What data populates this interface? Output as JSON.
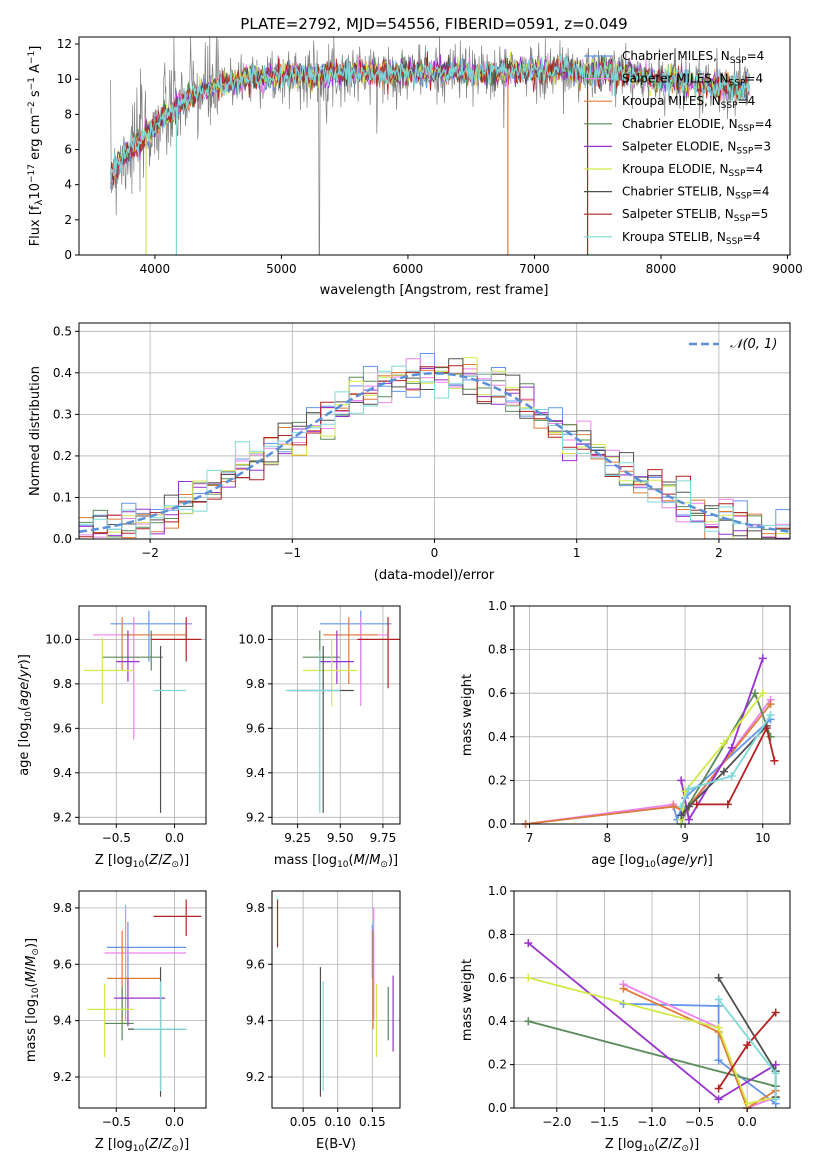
{
  "title": "PLATE=2792, MJD=54556, FIBERID=0591, z=0.049",
  "colors": {
    "chabrier_miles": "#6495ED",
    "salpeter_miles": "#EE82EE",
    "kroupa_miles": "#E07B39",
    "chabrier_elodie": "#5A8A5A",
    "salpeter_elodie": "#9932CC",
    "kroupa_elodie": "#D4E84A",
    "chabrier_stelib": "#505050",
    "salpeter_stelib": "#B22222",
    "kroupa_stelib": "#7FD8D8",
    "gaussian": "#5B8FD8",
    "grid": "#b0b0b0"
  },
  "chart_data": [
    {
      "id": "spectrum",
      "type": "line",
      "xlabel": "wavelength [Angstrom, rest frame]",
      "ylabel": "Flux [f_λ 10^-17 erg cm^-2 s^-1 A^-1]",
      "xlim": [
        3400,
        9020
      ],
      "ylim": [
        0,
        12.4
      ],
      "xticks": [
        "4000",
        "5000",
        "6000",
        "7000",
        "8000",
        "9000"
      ],
      "yticks": [
        "0",
        "2",
        "4",
        "6",
        "8",
        "10",
        "12"
      ],
      "grid": false,
      "legend_position": "right",
      "legend": [
        {
          "model": "Chabrier MILES",
          "nssp": "=4"
        },
        {
          "model": "Salpeter MILES",
          "nssp": "=4"
        },
        {
          "model": "Kroupa MILES",
          "nssp": "=4"
        },
        {
          "model": "Chabrier ELODIE",
          "nssp": "=4"
        },
        {
          "model": "Salpeter ELODIE",
          "nssp": "=3"
        },
        {
          "model": "Kroupa ELODIE",
          "nssp": "=4"
        },
        {
          "model": "Chabrier STELIB",
          "nssp": "=4"
        },
        {
          "model": "Salpeter STELIB",
          "nssp": "=5"
        },
        {
          "model": "Kroupa STELIB",
          "nssp": "=4"
        }
      ],
      "data_continuum": {
        "x": [
          3650,
          3700,
          3800,
          3900,
          4000,
          4100,
          4200,
          4300,
          4400,
          4500,
          4600,
          4700,
          4800,
          5000,
          5200,
          5400,
          5600,
          5800,
          6000,
          6200,
          6400,
          6600,
          6800,
          7000,
          7200,
          7400,
          7600,
          7800,
          8000,
          8200,
          8400,
          8600,
          8700
        ],
        "y": [
          4.5,
          5.2,
          6.0,
          6.6,
          7.3,
          8.0,
          8.6,
          9.1,
          9.4,
          9.6,
          9.8,
          10.0,
          10.1,
          10.2,
          10.2,
          10.3,
          10.4,
          10.3,
          10.4,
          10.4,
          10.4,
          10.3,
          10.5,
          10.4,
          10.6,
          10.3,
          10.4,
          10.2,
          10.0,
          9.9,
          9.6,
          9.5,
          9.6
        ]
      }
    },
    {
      "id": "residuals",
      "type": "histogram",
      "xlabel": "(data-model)/error",
      "ylabel": "Normed distribution",
      "xlim": [
        -2.5,
        2.5
      ],
      "ylim": [
        0,
        0.52
      ],
      "xticks": [
        "−2",
        "−1",
        "0",
        "1",
        "2"
      ],
      "yticks": [
        "0.0",
        "0.1",
        "0.2",
        "0.3",
        "0.4",
        "0.5"
      ],
      "grid": true,
      "legend_position": "top-right",
      "legend_label": "𝒩(0, 1)",
      "bin_width": 0.1
    },
    {
      "id": "age_vs_Z",
      "type": "scatter",
      "xlabel": "Z [log10(Z/Z⊙)]",
      "ylabel": "age  [log10(age/yr)]",
      "xlim": [
        -0.82,
        0.27
      ],
      "ylim": [
        9.17,
        10.15
      ],
      "xticks": [
        "−0.5",
        "0.0"
      ],
      "yticks": [
        "9.2",
        "9.4",
        "9.6",
        "9.8",
        "10.0"
      ],
      "grid": true,
      "points": [
        {
          "m": "chabrier_miles",
          "x": -0.22,
          "xlo": -0.55,
          "xhi": 0.15,
          "y": 10.07,
          "ylo": 9.9,
          "yhi": 10.13
        },
        {
          "m": "salpeter_miles",
          "x": -0.35,
          "xlo": -0.7,
          "xhi": 0.1,
          "y": 10.02,
          "ylo": 9.55,
          "yhi": 10.1
        },
        {
          "m": "kroupa_miles",
          "x": -0.45,
          "xlo": -0.45,
          "xhi": 0.1,
          "y": 10.02,
          "ylo": 9.86,
          "yhi": 10.1
        },
        {
          "m": "chabrier_elodie",
          "x": -0.2,
          "xlo": -0.62,
          "xhi": -0.1,
          "y": 9.92,
          "ylo": 9.86,
          "yhi": 10.04
        },
        {
          "m": "salpeter_elodie",
          "x": -0.4,
          "xlo": -0.5,
          "xhi": -0.3,
          "y": 9.9,
          "ylo": 9.81,
          "yhi": 10.04
        },
        {
          "m": "kroupa_elodie",
          "x": -0.62,
          "xlo": -0.78,
          "xhi": -0.35,
          "y": 9.86,
          "ylo": 9.71,
          "yhi": 10.01
        },
        {
          "m": "chabrier_stelib",
          "x": -0.12,
          "xlo": -0.12,
          "xhi": -0.12,
          "y": 9.77,
          "ylo": 9.22,
          "yhi": 9.97
        },
        {
          "m": "salpeter_stelib",
          "x": 0.1,
          "xlo": -0.2,
          "xhi": 0.23,
          "y": 10.0,
          "ylo": 9.9,
          "yhi": 10.1
        },
        {
          "m": "kroupa_stelib",
          "x": -0.12,
          "xlo": -0.18,
          "xhi": 0.1,
          "y": 9.77,
          "ylo": 9.77,
          "yhi": 9.77
        }
      ]
    },
    {
      "id": "age_vs_mass",
      "type": "scatter",
      "xlabel": "mass [log10(M/M⊙)]",
      "ylabel": "",
      "xlim": [
        9.1,
        9.85
      ],
      "ylim": [
        9.17,
        10.15
      ],
      "xticks": [
        "9.25",
        "9.50",
        "9.75"
      ],
      "yticks": [
        "9.2",
        "9.4",
        "9.6",
        "9.8",
        "10.0"
      ],
      "grid": true,
      "points": [
        {
          "m": "chabrier_miles",
          "x": 9.62,
          "xlo": 9.38,
          "xhi": 9.8,
          "y": 10.07,
          "ylo": 9.8,
          "yhi": 10.13
        },
        {
          "m": "salpeter_miles",
          "x": 9.62,
          "xlo": 9.45,
          "xhi": 9.78,
          "y": 10.02,
          "ylo": 9.7,
          "yhi": 10.1
        },
        {
          "m": "kroupa_miles",
          "x": 9.55,
          "xlo": 9.4,
          "xhi": 9.72,
          "y": 10.02,
          "ylo": 9.8,
          "yhi": 10.1
        },
        {
          "m": "chabrier_elodie",
          "x": 9.38,
          "xlo": 9.28,
          "xhi": 9.5,
          "y": 9.92,
          "ylo": 9.85,
          "yhi": 10.04
        },
        {
          "m": "salpeter_elodie",
          "x": 9.48,
          "xlo": 9.38,
          "xhi": 9.58,
          "y": 9.9,
          "ylo": 9.8,
          "yhi": 10.04
        },
        {
          "m": "kroupa_elodie",
          "x": 9.45,
          "xlo": 9.28,
          "xhi": 9.6,
          "y": 9.86,
          "ylo": 9.7,
          "yhi": 10.0
        },
        {
          "m": "chabrier_stelib",
          "x": 9.4,
          "xlo": 9.2,
          "xhi": 9.58,
          "y": 9.77,
          "ylo": 9.22,
          "yhi": 9.97
        },
        {
          "m": "salpeter_stelib",
          "x": 9.78,
          "xlo": 9.6,
          "xhi": 9.85,
          "y": 10.0,
          "ylo": 9.78,
          "yhi": 10.1
        },
        {
          "m": "kroupa_stelib",
          "x": 9.38,
          "xlo": 9.18,
          "xhi": 9.5,
          "y": 9.77,
          "ylo": 9.22,
          "yhi": 9.95
        }
      ]
    },
    {
      "id": "weight_vs_age",
      "type": "line",
      "xlabel": "age  [log10(age/yr)]",
      "ylabel": "mass weight",
      "xlim": [
        6.8,
        10.35
      ],
      "ylim": [
        0,
        1.0
      ],
      "xticks": [
        "7",
        "8",
        "9",
        "10"
      ],
      "yticks": [
        "0.0",
        "0.2",
        "0.4",
        "0.6",
        "0.8",
        "1.0"
      ],
      "grid": true,
      "series": [
        {
          "m": "chabrier_miles",
          "x": [
            6.95,
            8.85,
            8.9,
            9.0,
            10.1
          ],
          "y": [
            0.0,
            0.08,
            0.02,
            0.12,
            0.48
          ]
        },
        {
          "m": "salpeter_miles",
          "x": [
            6.95,
            8.85,
            9.0,
            10.1
          ],
          "y": [
            0.0,
            0.09,
            0.05,
            0.57
          ]
        },
        {
          "m": "kroupa_miles",
          "x": [
            6.95,
            8.85,
            9.0,
            10.1
          ],
          "y": [
            0.0,
            0.08,
            0.06,
            0.55
          ]
        },
        {
          "m": "chabrier_elodie",
          "x": [
            8.95,
            9.0,
            9.9,
            10.1
          ],
          "y": [
            0.0,
            0.06,
            0.6,
            0.4
          ]
        },
        {
          "m": "salpeter_elodie",
          "x": [
            8.95,
            9.05,
            9.6,
            10.0
          ],
          "y": [
            0.2,
            0.02,
            0.35,
            0.76
          ]
        },
        {
          "m": "kroupa_elodie",
          "x": [
            8.95,
            9.0,
            9.5,
            10.0
          ],
          "y": [
            0.02,
            0.15,
            0.37,
            0.6
          ]
        },
        {
          "m": "chabrier_stelib",
          "x": [
            8.95,
            9.05,
            9.5,
            10.05
          ],
          "y": [
            0.04,
            0.08,
            0.24,
            0.45
          ]
        },
        {
          "m": "salpeter_stelib",
          "x": [
            9.15,
            9.55,
            10.05,
            10.15
          ],
          "y": [
            0.09,
            0.09,
            0.44,
            0.29
          ]
        },
        {
          "m": "kroupa_stelib",
          "x": [
            8.95,
            9.05,
            9.6,
            10.1
          ],
          "y": [
            0.08,
            0.16,
            0.22,
            0.5
          ]
        }
      ]
    },
    {
      "id": "mass_vs_Z",
      "type": "scatter",
      "xlabel": "Z [log10(Z/Z⊙)]",
      "ylabel": "mass [log10(M/M⊙)]",
      "xlim": [
        -0.82,
        0.27
      ],
      "ylim": [
        9.09,
        9.86
      ],
      "xticks": [
        "−0.5",
        "0.0"
      ],
      "yticks": [
        "9.2",
        "9.4",
        "9.6",
        "9.8"
      ],
      "grid": true,
      "points": [
        {
          "m": "chabrier_miles",
          "x": -0.4,
          "xlo": -0.58,
          "xhi": 0.1,
          "y": 9.66,
          "ylo": 9.55,
          "yhi": 9.75
        },
        {
          "m": "salpeter_miles",
          "x": -0.42,
          "xlo": -0.6,
          "xhi": 0.1,
          "y": 9.64,
          "ylo": 9.4,
          "yhi": 9.81
        },
        {
          "m": "kroupa_miles",
          "x": -0.45,
          "xlo": -0.58,
          "xhi": -0.12,
          "y": 9.55,
          "ylo": 9.4,
          "yhi": 9.72
        },
        {
          "m": "chabrier_elodie",
          "x": -0.45,
          "xlo": -0.6,
          "xhi": -0.35,
          "y": 9.39,
          "ylo": 9.33,
          "yhi": 9.52
        },
        {
          "m": "salpeter_elodie",
          "x": -0.4,
          "xlo": -0.52,
          "xhi": -0.08,
          "y": 9.48,
          "ylo": 9.38,
          "yhi": 9.55
        },
        {
          "m": "kroupa_elodie",
          "x": -0.6,
          "xlo": -0.75,
          "xhi": -0.35,
          "y": 9.44,
          "ylo": 9.27,
          "yhi": 9.53
        },
        {
          "m": "chabrier_stelib",
          "x": -0.12,
          "xlo": -0.4,
          "xhi": 0.1,
          "y": 9.37,
          "ylo": 9.13,
          "yhi": 9.59
        },
        {
          "m": "salpeter_stelib",
          "x": 0.1,
          "xlo": -0.18,
          "xhi": 0.23,
          "y": 9.77,
          "ylo": 9.7,
          "yhi": 9.83
        },
        {
          "m": "kroupa_stelib",
          "x": -0.12,
          "xlo": -0.35,
          "xhi": 0.1,
          "y": 9.37,
          "ylo": 9.15,
          "yhi": 9.54
        }
      ]
    },
    {
      "id": "mass_vs_ebv",
      "type": "scatter",
      "xlabel": "E(B-V)",
      "ylabel": "",
      "xlim": [
        0.005,
        0.19
      ],
      "ylim": [
        9.09,
        9.86
      ],
      "xticks": [
        "0.05",
        "0.10",
        "0.15"
      ],
      "yticks": [
        "9.2",
        "9.4",
        "9.6",
        "9.8"
      ],
      "grid": true,
      "points": [
        {
          "m": "chabrier_miles",
          "x": 0.15,
          "y": 9.65,
          "ylo": 9.55,
          "yhi": 9.74
        },
        {
          "m": "salpeter_miles",
          "x": 0.152,
          "y": 9.63,
          "ylo": 9.4,
          "yhi": 9.8
        },
        {
          "m": "kroupa_miles",
          "x": 0.151,
          "y": 9.55,
          "ylo": 9.37,
          "yhi": 9.72
        },
        {
          "m": "chabrier_elodie",
          "x": 0.173,
          "y": 9.42,
          "ylo": 9.33,
          "yhi": 9.52
        },
        {
          "m": "salpeter_elodie",
          "x": 0.18,
          "y": 9.42,
          "ylo": 9.29,
          "yhi": 9.56
        },
        {
          "m": "kroupa_elodie",
          "x": 0.156,
          "y": 9.4,
          "ylo": 9.27,
          "yhi": 9.53
        },
        {
          "m": "chabrier_stelib",
          "x": 0.075,
          "y": 9.36,
          "ylo": 9.13,
          "yhi": 9.59
        },
        {
          "m": "salpeter_stelib",
          "x": 0.013,
          "y": 9.75,
          "ylo": 9.66,
          "yhi": 9.83
        },
        {
          "m": "kroupa_stelib",
          "x": 0.079,
          "y": 9.34,
          "ylo": 9.15,
          "yhi": 9.54
        }
      ]
    },
    {
      "id": "weight_vs_Z",
      "type": "line",
      "xlabel": "Z [log10(Z/Z⊙)]",
      "ylabel": "mass weight",
      "xlim": [
        -2.45,
        0.45
      ],
      "ylim": [
        0,
        1.0
      ],
      "xticks": [
        "−2.0",
        "−1.5",
        "−1.0",
        "−0.5",
        "0.0"
      ],
      "yticks": [
        "0.0",
        "0.2",
        "0.4",
        "0.6",
        "0.8",
        "1.0"
      ],
      "grid": true,
      "series": [
        {
          "m": "chabrier_miles",
          "x": [
            -1.3,
            -0.3,
            -0.3,
            0.3,
            0.3
          ],
          "y": [
            0.48,
            0.47,
            0.22,
            0.02,
            0.1
          ]
        },
        {
          "m": "salpeter_miles",
          "x": [
            -1.3,
            -0.3,
            0.0,
            0.3
          ],
          "y": [
            0.57,
            0.37,
            0.0,
            0.05
          ]
        },
        {
          "m": "kroupa_miles",
          "x": [
            -1.3,
            -0.3,
            0.0,
            0.3
          ],
          "y": [
            0.55,
            0.35,
            0.0,
            0.08
          ]
        },
        {
          "m": "chabrier_elodie",
          "x": [
            -2.3,
            0.3
          ],
          "y": [
            0.4,
            0.1
          ]
        },
        {
          "m": "salpeter_elodie",
          "x": [
            -2.3,
            -0.3,
            0.3
          ],
          "y": [
            0.76,
            0.04,
            0.2
          ]
        },
        {
          "m": "kroupa_elodie",
          "x": [
            -2.3,
            -0.3,
            0.0,
            0.3
          ],
          "y": [
            0.6,
            0.37,
            0.02,
            0.05
          ]
        },
        {
          "m": "chabrier_stelib",
          "x": [
            -0.3,
            0.3,
            0.3
          ],
          "y": [
            0.6,
            0.17,
            0.05
          ]
        },
        {
          "m": "salpeter_stelib",
          "x": [
            -0.3,
            0.0,
            0.3
          ],
          "y": [
            0.09,
            0.29,
            0.44
          ]
        },
        {
          "m": "kroupa_stelib",
          "x": [
            -0.3,
            0.3,
            0.3
          ],
          "y": [
            0.5,
            0.16,
            0.04
          ]
        }
      ]
    }
  ]
}
